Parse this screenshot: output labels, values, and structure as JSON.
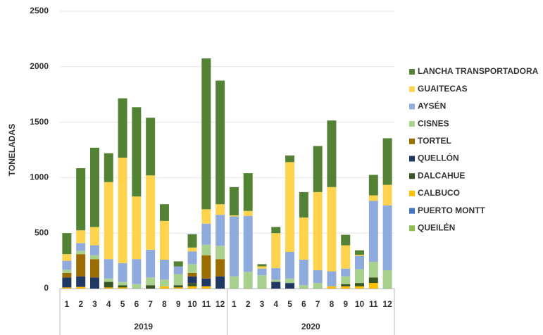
{
  "chart_data": {
    "type": "stacked_bar",
    "y_label": "TONELADAS",
    "categories": [
      "1",
      "2",
      "3",
      "4",
      "5",
      "6",
      "7",
      "8",
      "9",
      "10",
      "11",
      "12",
      "1",
      "2",
      "3",
      "4",
      "5",
      "6",
      "7",
      "8",
      "9",
      "10",
      "11",
      "12"
    ],
    "groups": [
      "2019",
      "2020"
    ],
    "ylim": [
      0,
      2500
    ],
    "yticks": [
      0,
      500,
      1000,
      1500,
      2000,
      2500
    ],
    "grid": true,
    "legend": "right",
    "series": [
      {
        "name": "QUEILÉN",
        "color": "#8cbf4f",
        "values": [
          0,
          0,
          0,
          0,
          0,
          0,
          0,
          0,
          0,
          0,
          0,
          0,
          0,
          0,
          0,
          0,
          0,
          0,
          0,
          0,
          0,
          0,
          0,
          0
        ]
      },
      {
        "name": "PUERTO MONTT",
        "color": "#4472c4",
        "values": [
          0,
          0,
          0,
          0,
          0,
          0,
          0,
          0,
          0,
          0,
          0,
          0,
          0,
          0,
          0,
          0,
          0,
          0,
          0,
          0,
          0,
          0,
          0,
          0
        ]
      },
      {
        "name": "CALBUCO",
        "color": "#ffc000",
        "values": [
          10,
          15,
          0,
          10,
          10,
          0,
          0,
          20,
          10,
          20,
          20,
          0,
          0,
          0,
          0,
          0,
          0,
          0,
          0,
          20,
          20,
          20,
          50,
          0
        ]
      },
      {
        "name": "DALCAHUE",
        "color": "#375623",
        "values": [
          0,
          0,
          0,
          50,
          20,
          0,
          30,
          0,
          20,
          30,
          0,
          0,
          0,
          0,
          0,
          0,
          0,
          0,
          0,
          0,
          20,
          30,
          50,
          0
        ]
      },
      {
        "name": "QUELLÓN",
        "color": "#203864",
        "values": [
          90,
          95,
          100,
          0,
          0,
          0,
          0,
          0,
          0,
          60,
          70,
          110,
          0,
          0,
          0,
          60,
          50,
          0,
          0,
          0,
          0,
          0,
          0,
          0
        ]
      },
      {
        "name": "TORTEL",
        "color": "#9c6c00",
        "values": [
          40,
          200,
          165,
          0,
          0,
          0,
          0,
          0,
          0,
          30,
          210,
          155,
          0,
          0,
          0,
          0,
          0,
          0,
          0,
          0,
          0,
          0,
          0,
          0
        ]
      },
      {
        "name": "CISNES",
        "color": "#a9d18e",
        "values": [
          30,
          30,
          35,
          30,
          30,
          40,
          70,
          60,
          100,
          80,
          95,
          120,
          110,
          150,
          120,
          20,
          40,
          30,
          50,
          0,
          70,
          125,
          140,
          165
        ]
      },
      {
        "name": "AYSÉN",
        "color": "#8faadc",
        "values": [
          80,
          70,
          90,
          175,
          170,
          225,
          250,
          180,
          70,
          115,
          190,
          280,
          540,
          505,
          60,
          105,
          240,
          230,
          115,
          135,
          70,
          120,
          550,
          585
        ]
      },
      {
        "name": "GUAITECAS",
        "color": "#ffd34d",
        "values": [
          60,
          115,
          165,
          695,
          950,
          565,
          670,
          350,
          0,
          35,
          130,
          95,
          10,
          45,
          20,
          315,
          810,
          380,
          705,
          760,
          210,
          10,
          50,
          185
        ]
      },
      {
        "name": "LANCHA TRANSPORTADORA",
        "color": "#548235",
        "values": [
          190,
          560,
          715,
          260,
          535,
          805,
          520,
          150,
          45,
          120,
          1360,
          1115,
          255,
          340,
          20,
          55,
          60,
          230,
          415,
          600,
          95,
          40,
          185,
          420
        ]
      }
    ]
  }
}
